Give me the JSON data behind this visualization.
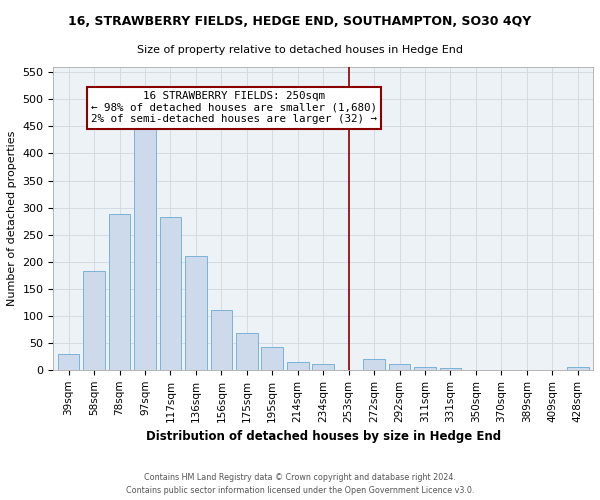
{
  "title": "16, STRAWBERRY FIELDS, HEDGE END, SOUTHAMPTON, SO30 4QY",
  "subtitle": "Size of property relative to detached houses in Hedge End",
  "xlabel": "Distribution of detached houses by size in Hedge End",
  "ylabel": "Number of detached properties",
  "bar_color": "#ccdaeb",
  "bar_edge_color": "#6aaad4",
  "grid_color": "#d0d8e0",
  "background_color": "#edf2f7",
  "categories": [
    "39sqm",
    "58sqm",
    "78sqm",
    "97sqm",
    "117sqm",
    "136sqm",
    "156sqm",
    "175sqm",
    "195sqm",
    "214sqm",
    "234sqm",
    "253sqm",
    "272sqm",
    "292sqm",
    "311sqm",
    "331sqm",
    "350sqm",
    "370sqm",
    "389sqm",
    "409sqm",
    "428sqm"
  ],
  "values": [
    30,
    183,
    288,
    450,
    283,
    210,
    110,
    68,
    43,
    15,
    10,
    0,
    20,
    10,
    6,
    3,
    0,
    0,
    0,
    0,
    5
  ],
  "ylim": [
    0,
    560
  ],
  "yticks": [
    0,
    50,
    100,
    150,
    200,
    250,
    300,
    350,
    400,
    450,
    500,
    550
  ],
  "vline_index": 11,
  "vline_color": "#8b0000",
  "annotation_title": "16 STRAWBERRY FIELDS: 250sqm",
  "annotation_line1": "← 98% of detached houses are smaller (1,680)",
  "annotation_line2": "2% of semi-detached houses are larger (32) →",
  "annotation_box_color": "#ffffff",
  "annotation_border_color": "#8b0000",
  "footer1": "Contains HM Land Registry data © Crown copyright and database right 2024.",
  "footer2": "Contains public sector information licensed under the Open Government Licence v3.0."
}
